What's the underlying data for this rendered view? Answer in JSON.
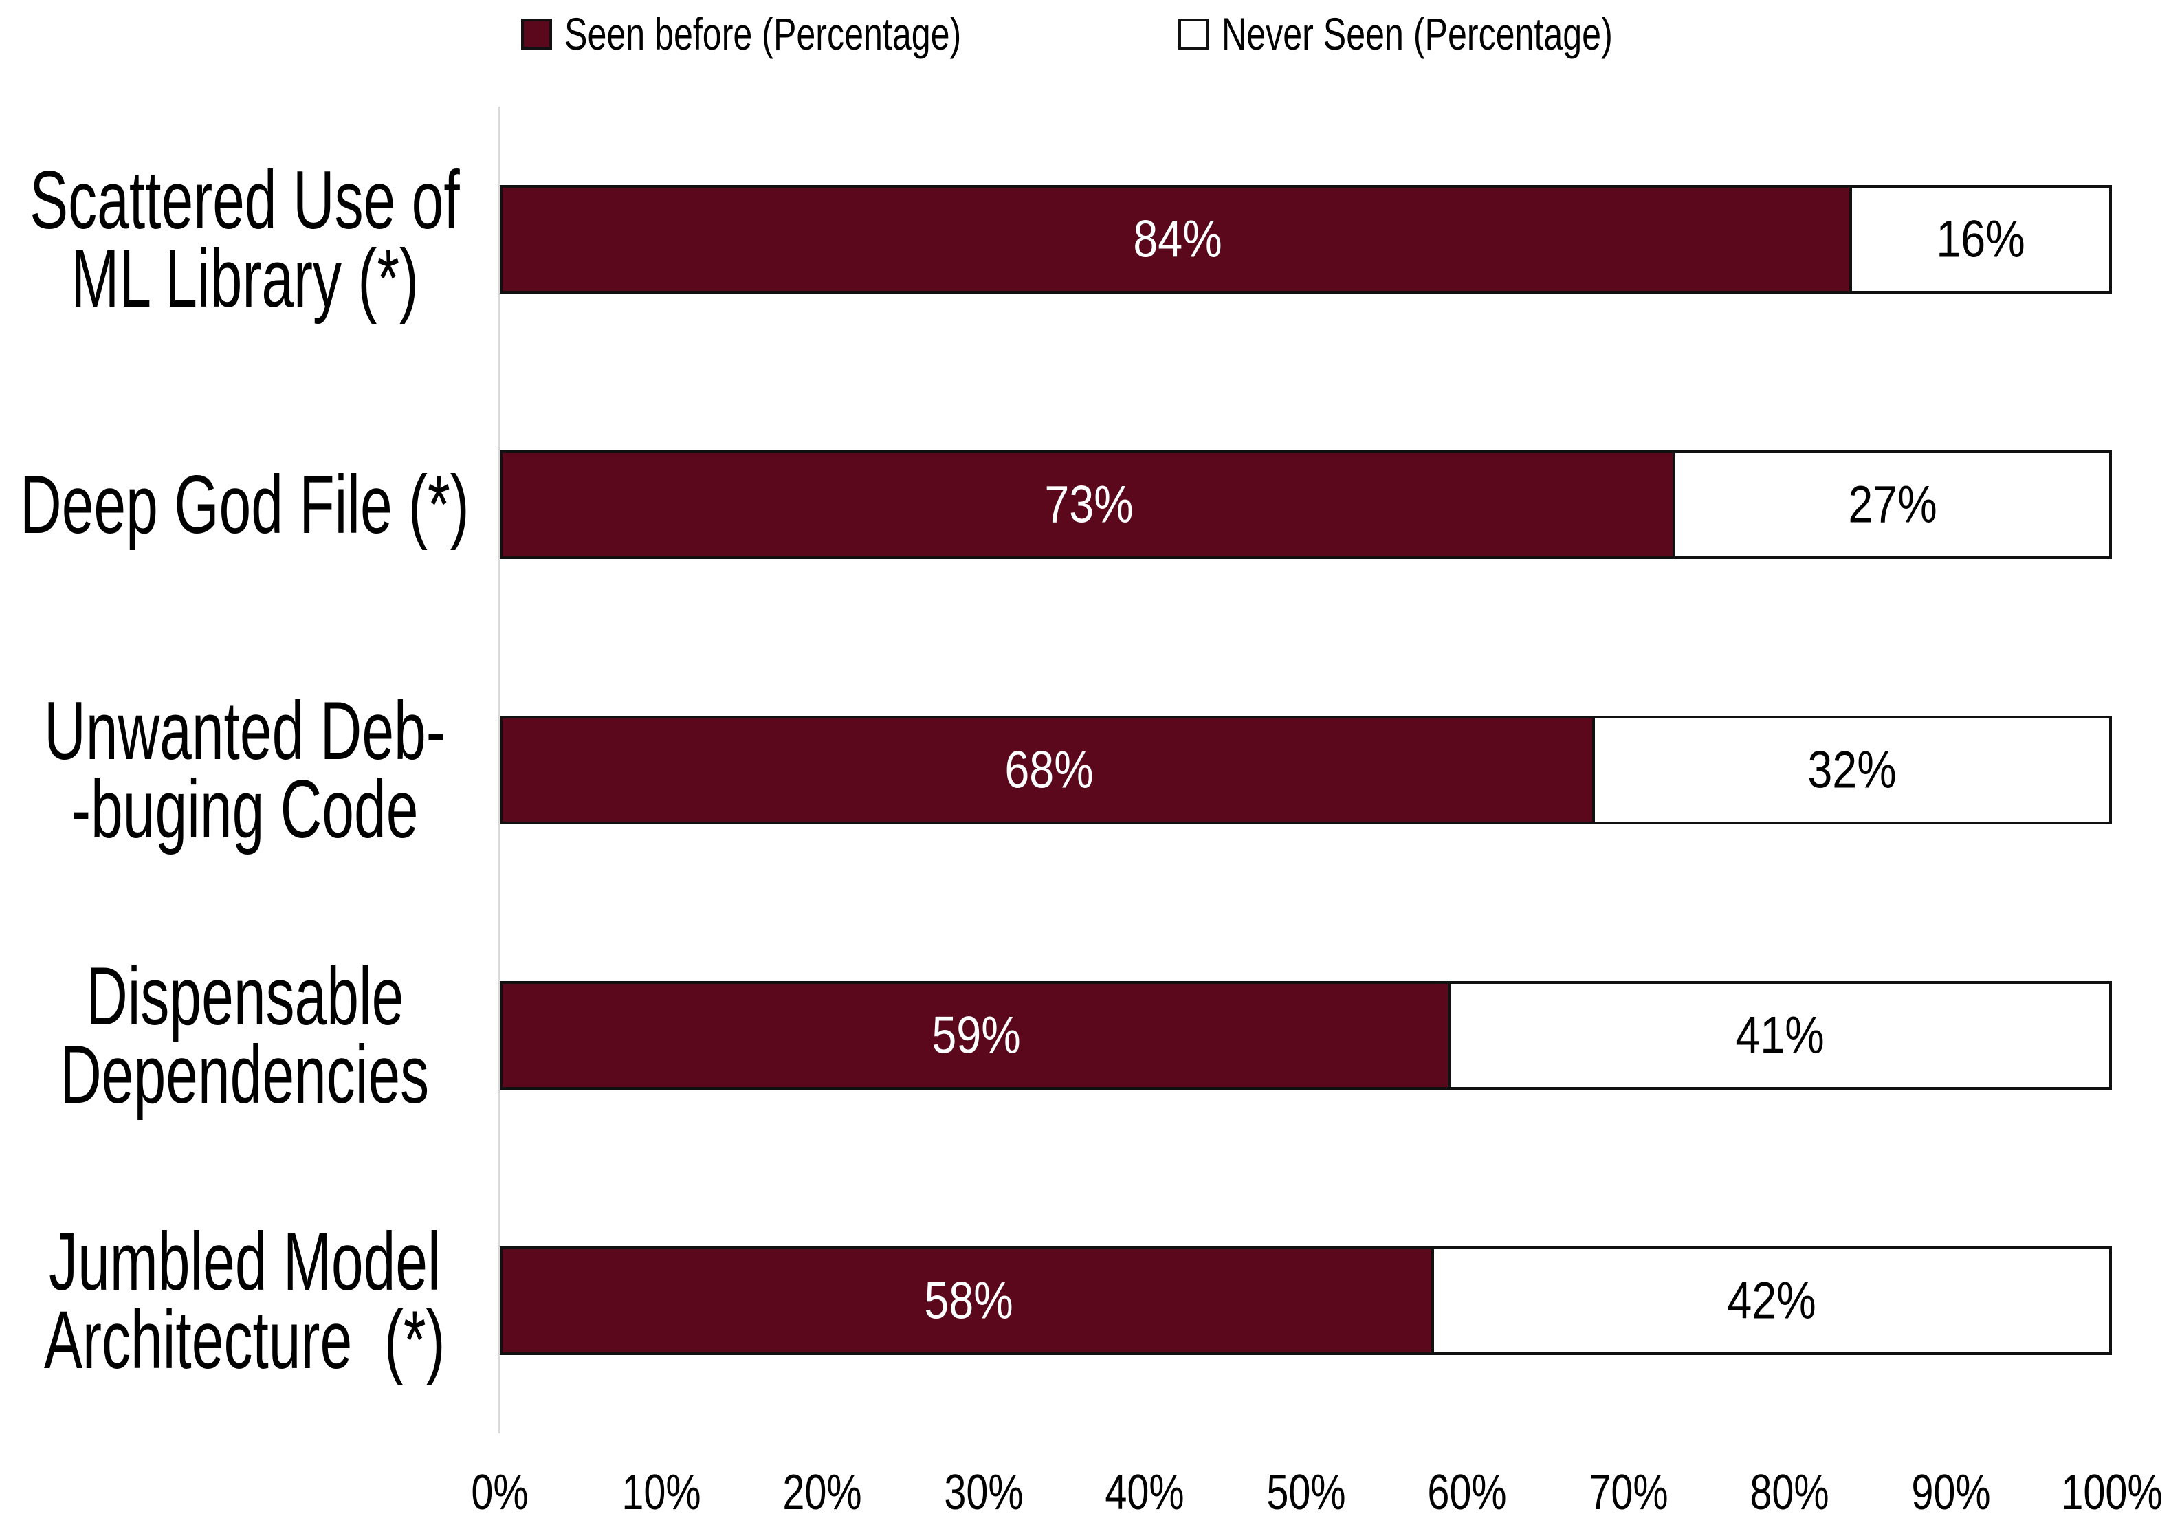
{
  "colors": {
    "seen": "#5C081C",
    "never": "#FFFFFF",
    "bar_border": "#111111",
    "axis_line": "#D9D9D9",
    "label_on_seen": "#FFFFFF",
    "label_on_never": "#000000"
  },
  "legend": {
    "items": [
      {
        "label": "Seen before (Percentage)"
      },
      {
        "label": "Never Seen (Percentage)"
      }
    ]
  },
  "chart_data": {
    "type": "bar",
    "orientation": "horizontal",
    "stacked": true,
    "title": "",
    "xlabel": "",
    "ylabel": "",
    "xlim": [
      0,
      100
    ],
    "x_tick_labels": [
      "0%",
      "10%",
      "20%",
      "30%",
      "40%",
      "50%",
      "60%",
      "70%",
      "80%",
      "90%",
      "100%"
    ],
    "grid": false,
    "legend_position": "top",
    "categories": [
      "Scattered Use of ML Library (*)",
      "Deep God File (*)",
      "Unwanted Deb- -buging Code",
      "Dispensable Dependencies",
      "Jumbled Model Architecture  (*)"
    ],
    "series": [
      {
        "name": "Seen before (Percentage)",
        "color": "#5C081C",
        "values": [
          84,
          73,
          68,
          59,
          58
        ]
      },
      {
        "name": "Never Seen (Percentage)",
        "color": "#FFFFFF",
        "values": [
          16,
          27,
          32,
          41,
          42
        ]
      }
    ],
    "rows": [
      {
        "label_line1": "Scattered Use of",
        "label_line2": "ML Library (*)",
        "seen": 84,
        "never": 16,
        "seen_label": "84%",
        "never_label": "16%",
        "seen_center": 42,
        "never_center": 92
      },
      {
        "label_line1": "Deep God File (*)",
        "label_line2": "",
        "seen": 73,
        "never": 27,
        "seen_label": "73%",
        "never_label": "27%",
        "seen_center": 36.5,
        "never_center": 86.5
      },
      {
        "label_line1": "Unwanted Deb-",
        "label_line2": "-buging Code",
        "seen": 68,
        "never": 32,
        "seen_label": "68%",
        "never_label": "32%",
        "seen_center": 34,
        "never_center": 84
      },
      {
        "label_line1": "Dispensable",
        "label_line2": "Dependencies",
        "seen": 59,
        "never": 41,
        "seen_label": "59%",
        "never_label": "41%",
        "seen_center": 29.5,
        "never_center": 79.5
      },
      {
        "label_line1": "Jumbled Model",
        "label_line2": "Architecture  (*)",
        "seen": 58,
        "never": 42,
        "seen_label": "58%",
        "never_label": "42%",
        "seen_center": 29,
        "never_center": 79
      }
    ]
  }
}
